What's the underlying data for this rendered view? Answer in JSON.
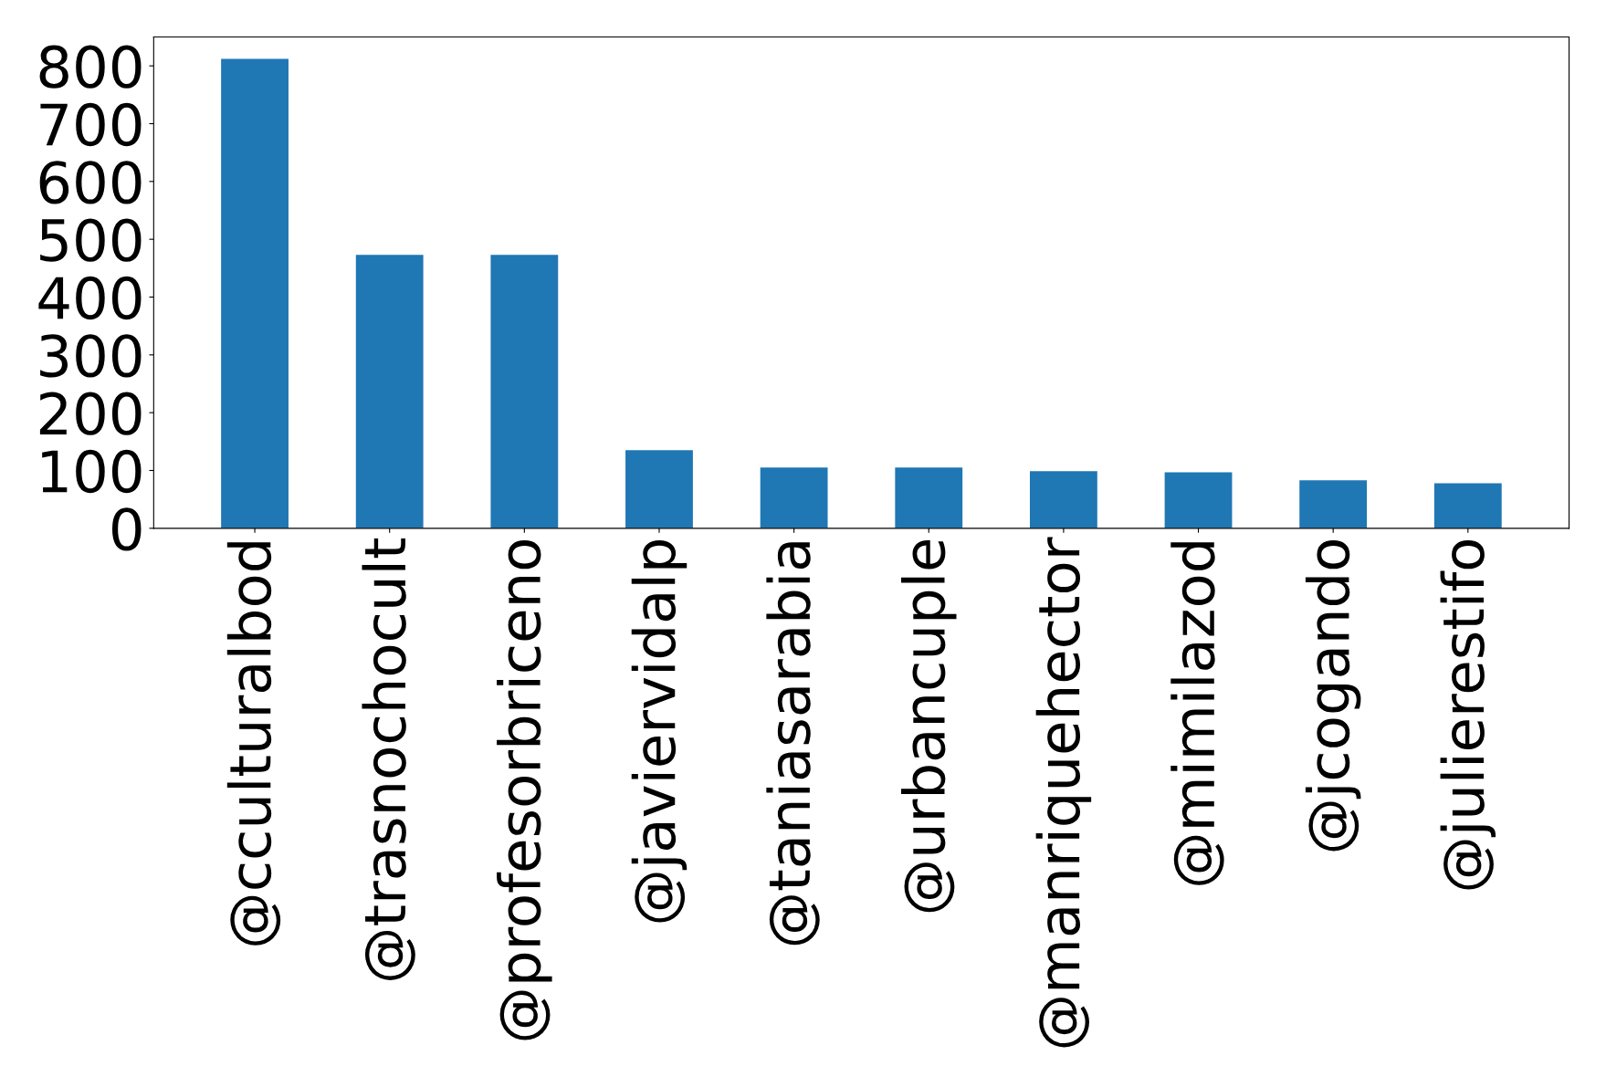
{
  "chart_data": {
    "type": "bar",
    "categories": [
      "@cculturalbod",
      "@trasnochocult",
      "@profesorbriceno",
      "@javiervidalp",
      "@taniasarabia",
      "@urbancuple",
      "@manriquehector",
      "@mimilazod",
      "@jcogando",
      "@julierestifo"
    ],
    "values": [
      812,
      473,
      473,
      135,
      105,
      105,
      99,
      97,
      83,
      78
    ],
    "color": "#1f77b4",
    "ylim": [
      0,
      850
    ],
    "yticks": [
      0,
      100,
      200,
      300,
      400,
      500,
      600,
      700,
      800
    ],
    "grid": false,
    "legend": false
  }
}
